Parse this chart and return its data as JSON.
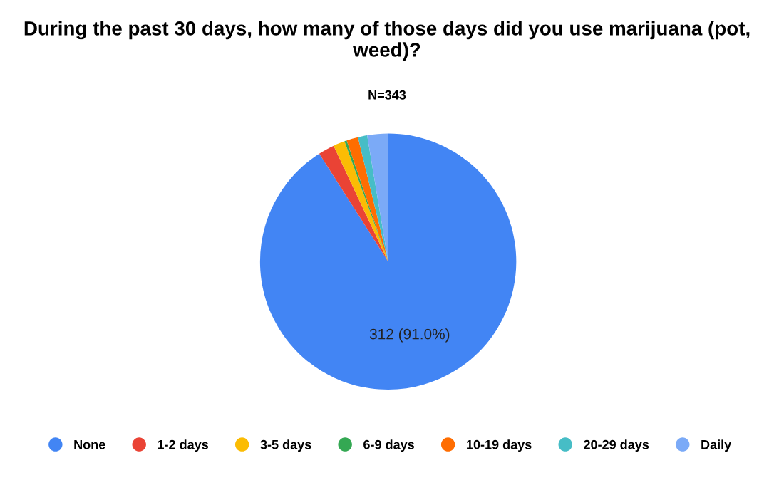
{
  "chart_data": {
    "type": "pie",
    "title": "During the past 30 days, how many of those days did you use marijuana (pot, weed)?",
    "subtitle": "N=343",
    "categories": [
      "None",
      "1-2 days",
      "3-5 days",
      "6-9 days",
      "10-19 days",
      "20-29 days",
      "Daily"
    ],
    "values": [
      312,
      7,
      5,
      1,
      5,
      4,
      9
    ],
    "colors": [
      "#4285f4",
      "#ea4335",
      "#fbbc04",
      "#34a853",
      "#ff6d01",
      "#46bdc6",
      "#7baaf7"
    ],
    "value_labels": [
      "312 (91.0%)",
      null,
      null,
      null,
      null,
      null,
      null
    ],
    "legend": "bottom"
  }
}
